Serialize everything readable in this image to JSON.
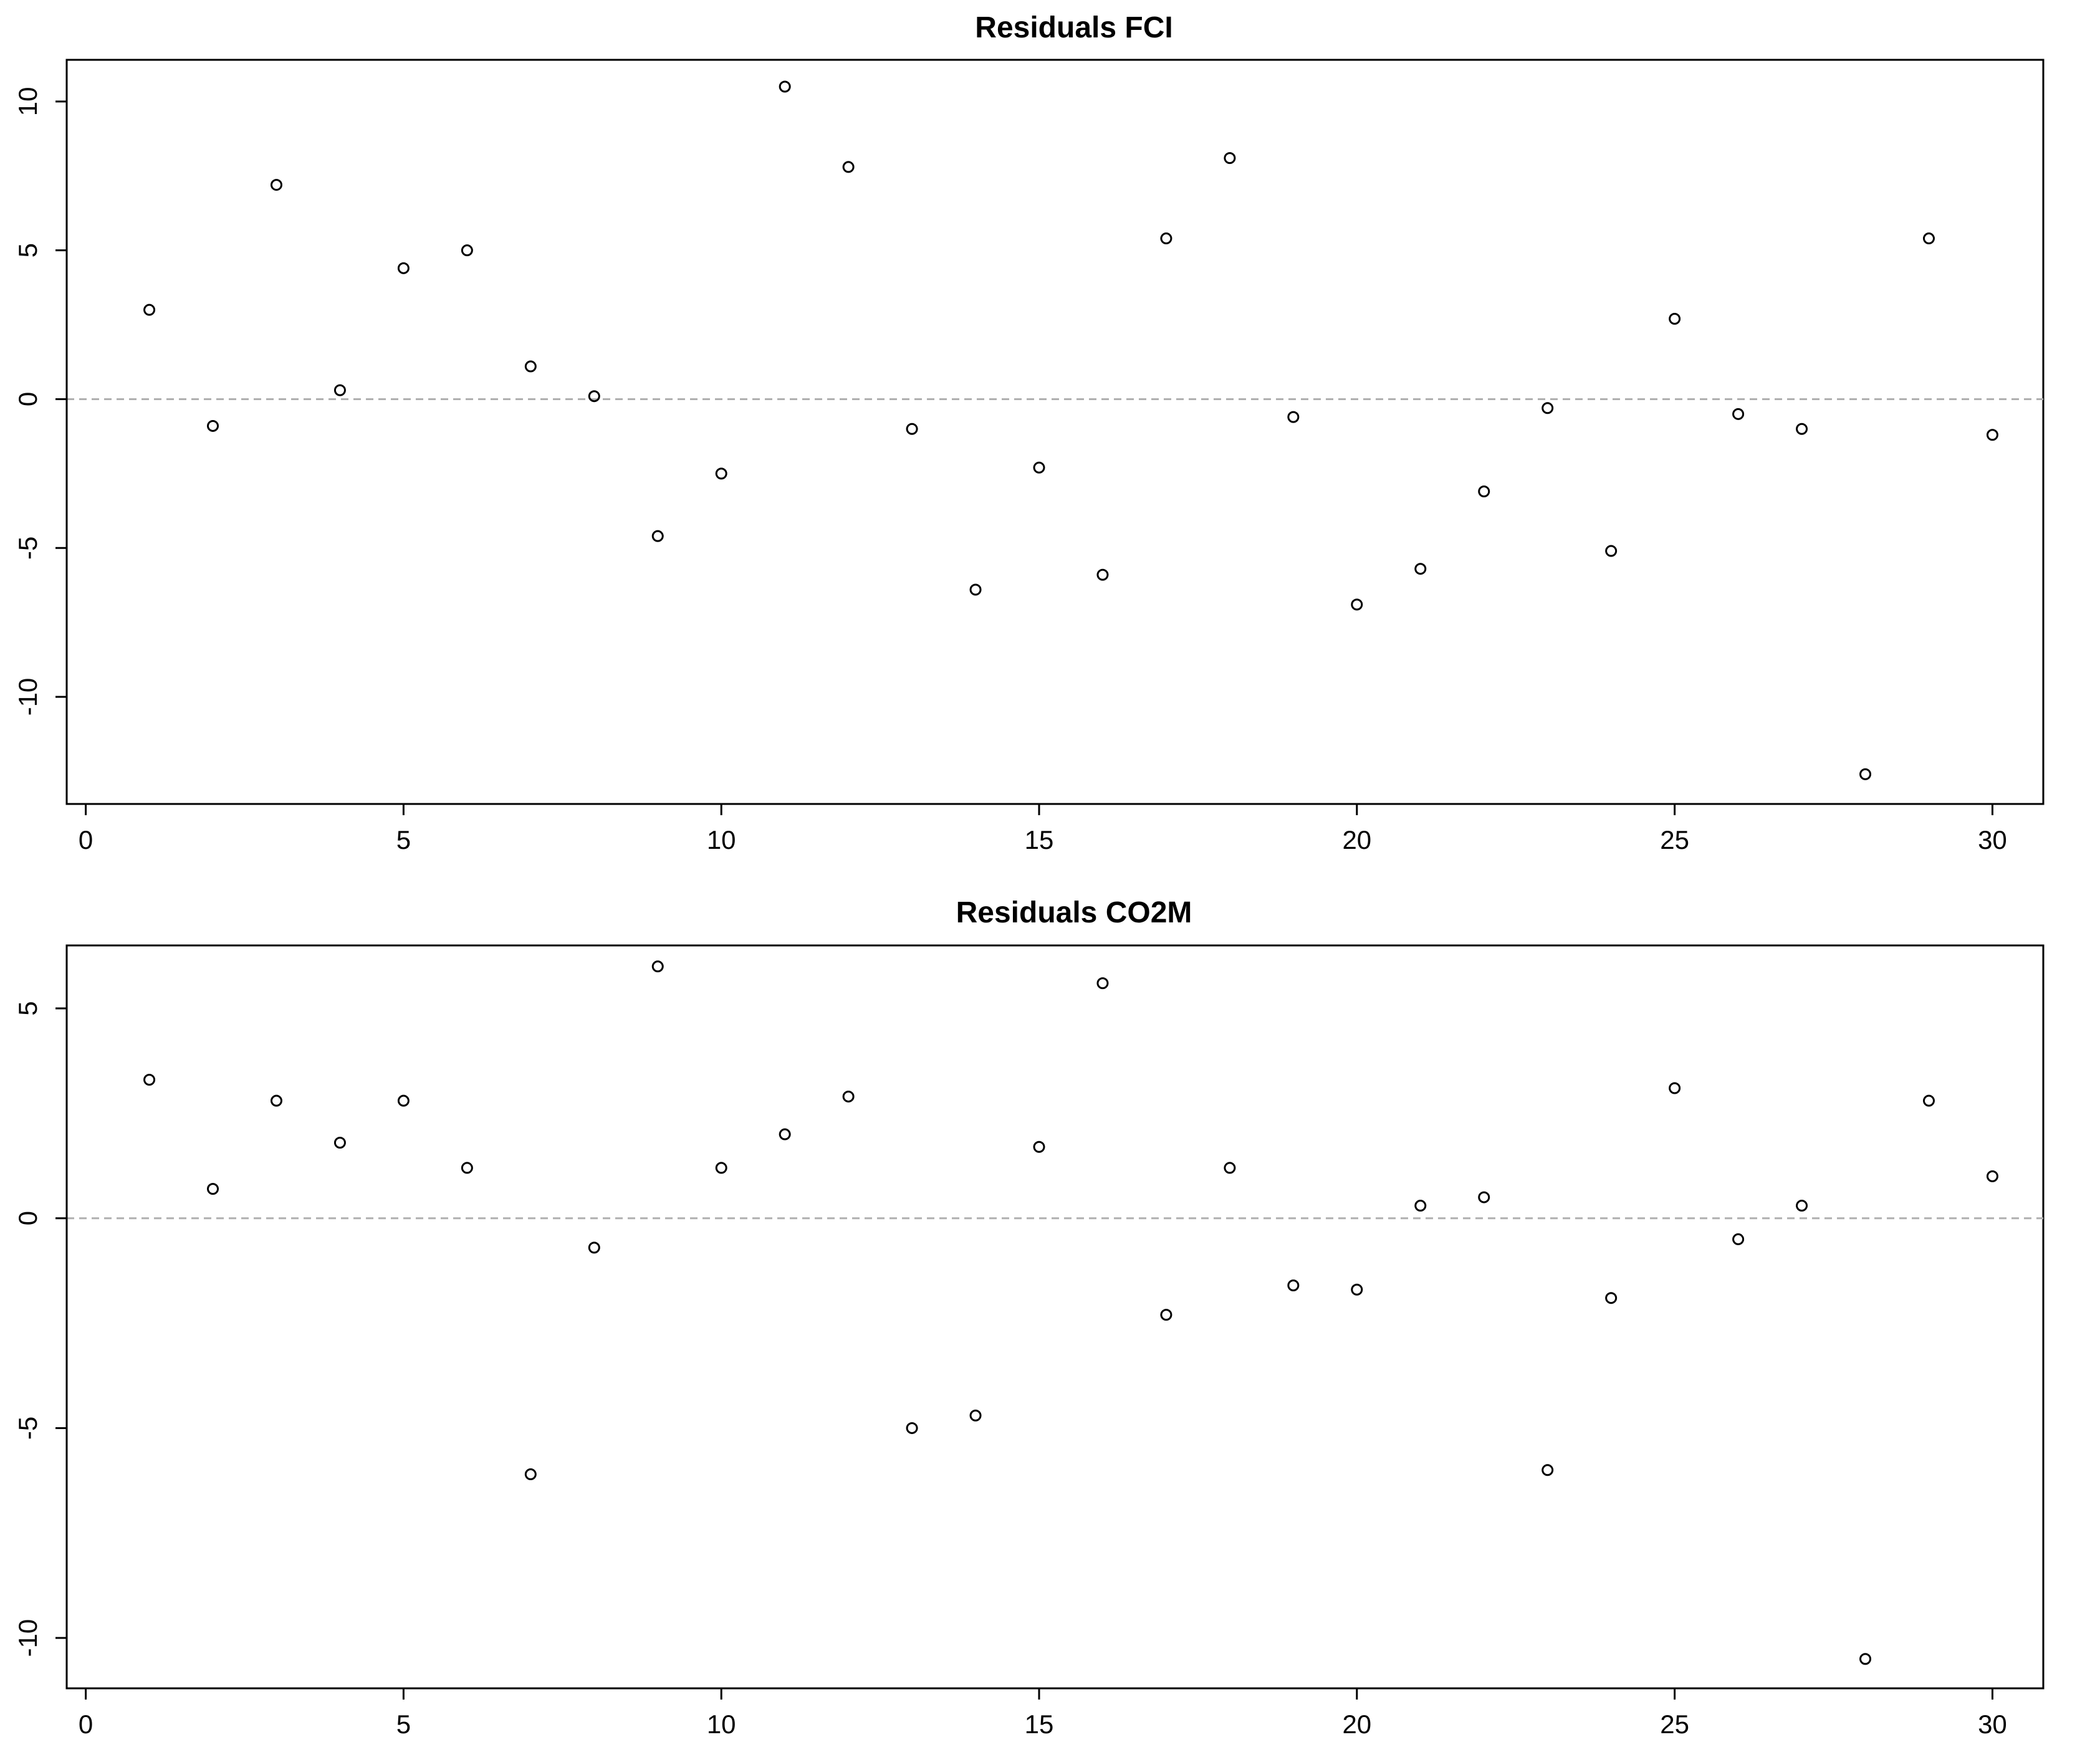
{
  "chart_data": [
    {
      "type": "scatter",
      "title": "Residuals FCI",
      "xlabel": "",
      "ylabel": "",
      "xlim": [
        -0.3,
        30.8
      ],
      "ylim": [
        -13.6,
        11.4
      ],
      "x_ticks": [
        0,
        5,
        10,
        15,
        20,
        25,
        30
      ],
      "x_tick_labels": [
        "0",
        "5",
        "10",
        "15",
        "20",
        "25",
        "30"
      ],
      "y_ticks": [
        10,
        5,
        0,
        -5,
        -10
      ],
      "y_tick_labels": [
        "10",
        "5",
        "0",
        "-5",
        "-10"
      ],
      "reference_line": 0,
      "grid": false,
      "series": [
        {
          "x": [
            1,
            2,
            3,
            4,
            5,
            6,
            7,
            8,
            9,
            10,
            11,
            12,
            13,
            14,
            15,
            16,
            17,
            18,
            19,
            20,
            21,
            22,
            23,
            24,
            25,
            26,
            27,
            28,
            29,
            30
          ],
          "values": [
            3.0,
            -0.9,
            7.2,
            0.3,
            4.4,
            5.0,
            1.1,
            0.1,
            -4.6,
            -2.5,
            10.5,
            7.8,
            -1.0,
            -6.4,
            -2.3,
            -5.9,
            5.4,
            8.1,
            -0.6,
            -6.9,
            -5.7,
            -3.1,
            -0.3,
            -5.1,
            2.7,
            -0.5,
            -1.0,
            -12.6,
            5.4,
            -1.2
          ]
        }
      ],
      "color": "#000000",
      "ref_color": "#b0b0b0"
    },
    {
      "type": "scatter",
      "title": "Residuals CO2M",
      "xlabel": "",
      "ylabel": "",
      "xlim": [
        -0.3,
        30.8
      ],
      "ylim": [
        -11.2,
        6.5
      ],
      "x_ticks": [
        0,
        5,
        10,
        15,
        20,
        25,
        30
      ],
      "x_tick_labels": [
        "0",
        "5",
        "10",
        "15",
        "20",
        "25",
        "30"
      ],
      "y_ticks": [
        5,
        0,
        -5,
        -10
      ],
      "y_tick_labels": [
        "5",
        "0",
        "-5",
        "-10"
      ],
      "reference_line": 0,
      "grid": false,
      "series": [
        {
          "x": [
            1,
            2,
            3,
            4,
            5,
            6,
            7,
            8,
            9,
            10,
            11,
            12,
            13,
            14,
            15,
            16,
            17,
            18,
            19,
            20,
            21,
            22,
            23,
            24,
            25,
            26,
            27,
            28,
            29,
            30
          ],
          "values": [
            3.3,
            0.7,
            2.8,
            1.8,
            2.8,
            1.2,
            -6.1,
            -0.7,
            6.0,
            1.2,
            2.0,
            2.9,
            -5.0,
            -4.7,
            1.7,
            5.6,
            -2.3,
            1.2,
            -1.6,
            -1.7,
            0.3,
            0.5,
            -6.0,
            -1.9,
            3.1,
            -0.5,
            0.3,
            -10.5,
            2.8,
            1.0
          ]
        }
      ],
      "color": "#000000",
      "ref_color": "#b0b0b0"
    }
  ]
}
